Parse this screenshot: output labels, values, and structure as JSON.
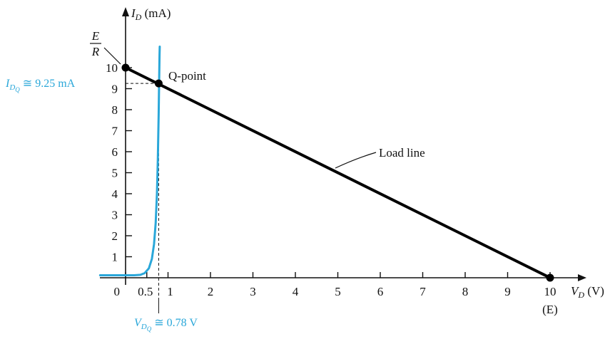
{
  "chart_data": {
    "type": "line",
    "title": "",
    "xlabel": "V_D (V)",
    "ylabel": "I_D (mA)",
    "xlim": [
      0,
      10.6
    ],
    "ylim": [
      0,
      10.8
    ],
    "grid": false,
    "x_ticks": [
      0,
      0.5,
      1,
      2,
      3,
      4,
      5,
      6,
      7,
      8,
      9,
      10
    ],
    "x_tick_labels": [
      "0",
      "0.5",
      "1",
      "2",
      "3",
      "4",
      "5",
      "6",
      "7",
      "8",
      "9",
      "10"
    ],
    "y_ticks": [
      1,
      2,
      3,
      4,
      5,
      6,
      7,
      8,
      9,
      10
    ],
    "y_tick_labels": [
      "1",
      "2",
      "3",
      "4",
      "5",
      "6",
      "7",
      "8",
      "9",
      "10"
    ],
    "x_axis_sublabel": "(E)",
    "series": [
      {
        "name": "Load line",
        "color": "#000000",
        "x": [
          0,
          10
        ],
        "y": [
          10,
          0
        ]
      },
      {
        "color": "#2aa7d9",
        "x": [
          -0.6,
          0.0,
          0.2,
          0.35,
          0.45,
          0.55,
          0.62,
          0.67,
          0.71,
          0.74,
          0.76,
          0.78,
          0.79,
          0.8,
          0.805
        ],
        "y": [
          0.12,
          0.12,
          0.12,
          0.14,
          0.22,
          0.45,
          0.9,
          1.6,
          2.6,
          4.0,
          5.6,
          7.8,
          9.25,
          10.6,
          11.0
        ]
      }
    ],
    "points": [
      {
        "label": "E/R",
        "x": 0,
        "y": 10
      },
      {
        "label": "Q-point",
        "x": 0.78,
        "y": 9.25
      },
      {
        "label": "(E)",
        "x": 10,
        "y": 0
      }
    ],
    "annotations": {
      "e_over_r_num": "E",
      "e_over_r_den": "R",
      "q_point_label": "Q-point",
      "load_line_label": "Load line",
      "idq_label": "I_DQ ≅ 9.25 mA",
      "vdq_label": "V_DQ ≅ 0.78 V",
      "idq_value": 9.25,
      "vdq_value": 0.78
    }
  }
}
